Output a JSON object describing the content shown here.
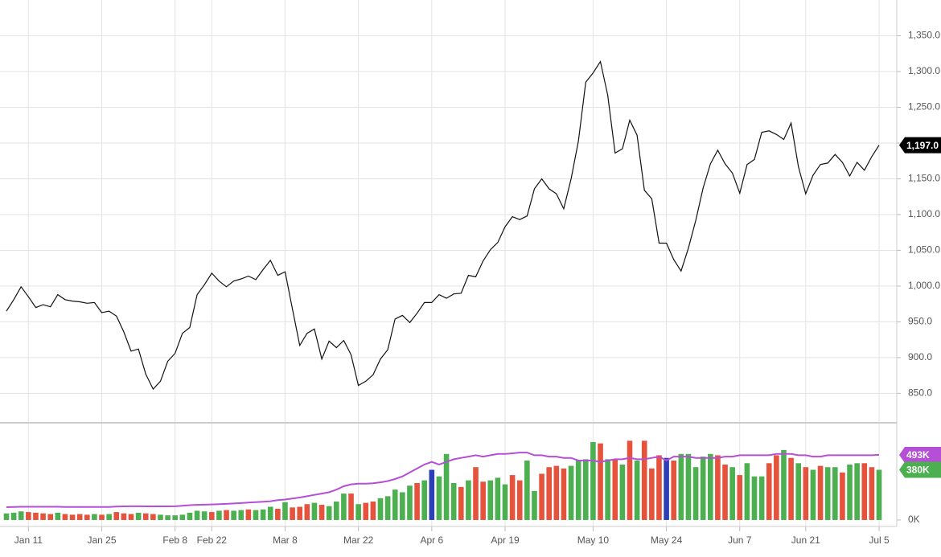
{
  "chart_data": [
    {
      "type": "line",
      "categories": [
        null,
        null,
        null,
        "Jan 11",
        null,
        null,
        null,
        null,
        null,
        null,
        null,
        null,
        null,
        "Jan 25",
        null,
        null,
        null,
        null,
        null,
        null,
        null,
        null,
        null,
        "Feb 8",
        null,
        null,
        null,
        null,
        "Feb 22",
        null,
        null,
        null,
        null,
        null,
        null,
        null,
        null,
        null,
        "Mar 8",
        null,
        null,
        null,
        null,
        null,
        null,
        null,
        null,
        null,
        "Mar 22",
        null,
        null,
        null,
        null,
        null,
        null,
        null,
        null,
        null,
        "Apr 6",
        null,
        null,
        null,
        null,
        null,
        null,
        null,
        null,
        null,
        "Apr 19",
        null,
        null,
        null,
        null,
        null,
        null,
        null,
        null,
        null,
        null,
        null,
        "May 10",
        null,
        null,
        null,
        null,
        null,
        null,
        null,
        null,
        null,
        "May 24",
        null,
        null,
        null,
        null,
        null,
        null,
        null,
        null,
        null,
        "Jun 7",
        null,
        null,
        null,
        null,
        null,
        null,
        null,
        null,
        "Jun 21",
        null,
        null,
        null,
        null,
        null,
        null,
        null,
        null,
        null,
        "Jul 5"
      ],
      "values": [
        965,
        981,
        999,
        985,
        970,
        974,
        971,
        988,
        981,
        979,
        978,
        976,
        977,
        963,
        965,
        958,
        936,
        909,
        912,
        877,
        856,
        867,
        895,
        906,
        934,
        942,
        988,
        1002,
        1018,
        1007,
        999,
        1007,
        1010,
        1014,
        1009,
        1023,
        1036,
        1015,
        1020,
        968,
        917,
        934,
        940,
        898,
        923,
        914,
        924,
        904,
        861,
        867,
        876,
        898,
        911,
        954,
        959,
        949,
        962,
        977,
        977,
        988,
        983,
        989,
        990,
        1015,
        1013,
        1035,
        1051,
        1061,
        1083,
        1097,
        1093,
        1098,
        1136,
        1150,
        1136,
        1129,
        1108,
        1150,
        1203,
        1285,
        1298,
        1314,
        1267,
        1186,
        1192,
        1232,
        1211,
        1134,
        1122,
        1060,
        1060,
        1037,
        1021,
        1053,
        1092,
        1137,
        1171,
        1190,
        1171,
        1158,
        1130,
        1170,
        1177,
        1215,
        1217,
        1212,
        1205,
        1228,
        1167,
        1129,
        1155,
        1170,
        1172,
        1184,
        1173,
        1154,
        1173,
        1162,
        1181,
        1197
      ],
      "color": "#111111",
      "ylim": [
        810,
        1400
      ],
      "yticks": [
        {
          "value": 850,
          "label": "850.0"
        },
        {
          "value": 900,
          "label": "900.0"
        },
        {
          "value": 950,
          "label": "950.0"
        },
        {
          "value": 1000,
          "label": "1,000.0"
        },
        {
          "value": 1050,
          "label": "1,050.0"
        },
        {
          "value": 1100,
          "label": "1,100.0"
        },
        {
          "value": 1150,
          "label": "1,150.0"
        },
        {
          "value": 1200,
          "label": "1,200.0"
        },
        {
          "value": 1250,
          "label": "1,250.0"
        },
        {
          "value": 1300,
          "label": "1,300.0"
        },
        {
          "value": 1350,
          "label": "1,350.0"
        }
      ],
      "grid": true,
      "annotations": [
        {
          "text": "1,197.0",
          "value": 1197,
          "color": "#000000"
        }
      ]
    },
    {
      "type": "volume",
      "series": [
        {
          "type": "bar",
          "values": [
            50,
            55,
            65,
            60,
            55,
            50,
            45,
            55,
            45,
            40,
            45,
            40,
            45,
            40,
            45,
            60,
            50,
            45,
            55,
            50,
            45,
            40,
            35,
            35,
            40,
            55,
            70,
            65,
            60,
            70,
            75,
            70,
            75,
            80,
            75,
            80,
            100,
            85,
            135,
            95,
            100,
            120,
            130,
            115,
            105,
            140,
            200,
            200,
            120,
            130,
            140,
            165,
            180,
            230,
            210,
            260,
            280,
            300,
            380,
            330,
            500,
            280,
            250,
            300,
            400,
            290,
            300,
            320,
            270,
            340,
            300,
            450,
            220,
            350,
            400,
            410,
            390,
            410,
            450,
            460,
            590,
            580,
            460,
            460,
            420,
            600,
            450,
            600,
            390,
            490,
            470,
            450,
            500,
            500,
            400,
            480,
            500,
            490,
            420,
            400,
            340,
            430,
            330,
            330,
            430,
            490,
            530,
            470,
            430,
            400,
            380,
            410,
            400,
            400,
            360,
            420,
            430,
            430,
            400,
            380
          ],
          "colors": [
            "#4caf50",
            "#4caf50",
            "#4caf50",
            "#e5533d",
            "#e5533d",
            "#e5533d",
            "#e5533d",
            "#4caf50",
            "#e5533d",
            "#e5533d",
            "#e5533d",
            "#e5533d",
            "#4caf50",
            "#e5533d",
            "#4caf50",
            "#e5533d",
            "#e5533d",
            "#e5533d",
            "#4caf50",
            "#e5533d",
            "#e5533d",
            "#4caf50",
            "#4caf50",
            "#4caf50",
            "#4caf50",
            "#4caf50",
            "#4caf50",
            "#4caf50",
            "#e5533d",
            "#4caf50",
            "#e5533d",
            "#4caf50",
            "#4caf50",
            "#e5533d",
            "#4caf50",
            "#4caf50",
            "#4caf50",
            "#e5533d",
            "#4caf50",
            "#e5533d",
            "#e5533d",
            "#e5533d",
            "#4caf50",
            "#e5533d",
            "#4caf50",
            "#4caf50",
            "#4caf50",
            "#e5533d",
            "#4caf50",
            "#e5533d",
            "#e5533d",
            "#4caf50",
            "#4caf50",
            "#4caf50",
            "#4caf50",
            "#4caf50",
            "#e5533d",
            "#4caf50",
            "#2d3fb5",
            "#4caf50",
            "#4caf50",
            "#4caf50",
            "#e5533d",
            "#4caf50",
            "#e5533d",
            "#e5533d",
            "#4caf50",
            "#4caf50",
            "#4caf50",
            "#e5533d",
            "#e5533d",
            "#4caf50",
            "#4caf50",
            "#e5533d",
            "#e5533d",
            "#e5533d",
            "#e5533d",
            "#4caf50",
            "#4caf50",
            "#4caf50",
            "#4caf50",
            "#e5533d",
            "#4caf50",
            "#e5533d",
            "#4caf50",
            "#e5533d",
            "#4caf50",
            "#e5533d",
            "#e5533d",
            "#e5533d",
            "#2d3fb5",
            "#e5533d",
            "#4caf50",
            "#4caf50",
            "#4caf50",
            "#4caf50",
            "#4caf50",
            "#e5533d",
            "#e5533d",
            "#4caf50",
            "#e5533d",
            "#4caf50",
            "#4caf50",
            "#4caf50",
            "#e5533d",
            "#e5533d",
            "#4caf50",
            "#e5533d",
            "#4caf50",
            "#e5533d",
            "#4caf50",
            "#e5533d",
            "#4caf50",
            "#4caf50",
            "#e5533d",
            "#4caf50",
            "#4caf50",
            "#e5533d",
            "#e5533d",
            "#4caf50"
          ]
        },
        {
          "type": "line",
          "color": "#b44fd6",
          "values": [
            97,
            99,
            100,
            100,
            100,
            100,
            100,
            100,
            99,
            98,
            98,
            98,
            98,
            98,
            98,
            102,
            103,
            104,
            104,
            103,
            103,
            103,
            103,
            104,
            108,
            112,
            115,
            116,
            118,
            120,
            122,
            125,
            128,
            132,
            135,
            138,
            142,
            150,
            155,
            162,
            170,
            180,
            190,
            200,
            210,
            230,
            255,
            270,
            275,
            275,
            278,
            285,
            295,
            310,
            330,
            360,
            390,
            420,
            440,
            420,
            440,
            460,
            470,
            480,
            490,
            480,
            490,
            500,
            500,
            505,
            510,
            510,
            490,
            490,
            480,
            480,
            470,
            470,
            450,
            450,
            450,
            440,
            450,
            460,
            460,
            470,
            460,
            460,
            470,
            480,
            450,
            480,
            480,
            480,
            470,
            470,
            470,
            470,
            480,
            480,
            490,
            490,
            490,
            490,
            490,
            500,
            500,
            500,
            490,
            490,
            480,
            480,
            490,
            490,
            490,
            490,
            490,
            490,
            490,
            493
          ]
        }
      ],
      "ylim": [
        -49,
        730
      ],
      "yticks": [
        {
          "value": 0,
          "label": "0K"
        }
      ],
      "annotations": [
        {
          "text": "493K",
          "value": 493,
          "color": "#b44fd6"
        },
        {
          "text": "380K",
          "value": 380,
          "color": "#4caf50"
        }
      ]
    }
  ]
}
